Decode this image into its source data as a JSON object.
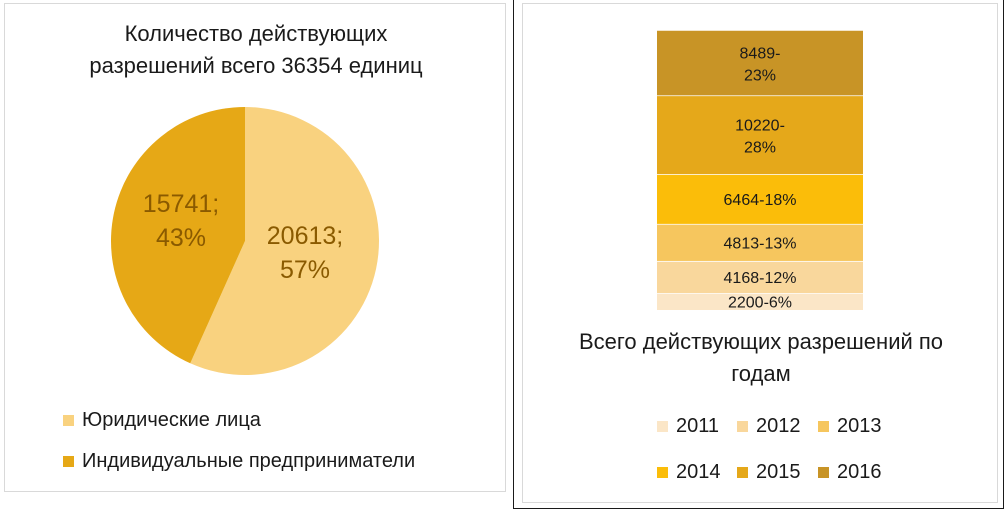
{
  "pie_title_line1": "Количество действующих",
  "pie_title_line2": "разрешений всего 36354 единиц",
  "bar_title_line1": "Всего действующих разрешений по",
  "bar_title_line2": "годам",
  "chart_data": [
    {
      "type": "pie",
      "title": "Количество действующих разрешений всего 36354 единиц",
      "categories": [
        "Юридические лица",
        "Индивидуальные предприниматели"
      ],
      "values": [
        20613,
        15741
      ],
      "labels": [
        "20613;",
        "15741;"
      ],
      "percent_labels": [
        "57%",
        "43%"
      ],
      "colors": [
        "#f9d27f",
        "#e6a816"
      ],
      "legend_position": "bottom"
    },
    {
      "type": "bar",
      "stacked": true,
      "title": "Всего действующих разрешений по годам",
      "series": [
        {
          "name": "2011",
          "values": [
            2200
          ],
          "label": "2200-6%",
          "color": "#fbe6c7"
        },
        {
          "name": "2012",
          "values": [
            4168
          ],
          "label": "4168-12%",
          "color": "#f9d79c"
        },
        {
          "name": "2013",
          "values": [
            4813
          ],
          "label": "4813-13%",
          "color": "#f6c65e"
        },
        {
          "name": "2014",
          "values": [
            6464
          ],
          "label": "6464-18%",
          "color": "#fbbd09"
        },
        {
          "name": "2015",
          "values": [
            10220
          ],
          "label": "10220-28%",
          "color": "#e5a81a"
        },
        {
          "name": "2016",
          "values": [
            8489
          ],
          "label": "8489-23%",
          "color": "#c89426"
        }
      ],
      "legend_position": "bottom"
    }
  ]
}
